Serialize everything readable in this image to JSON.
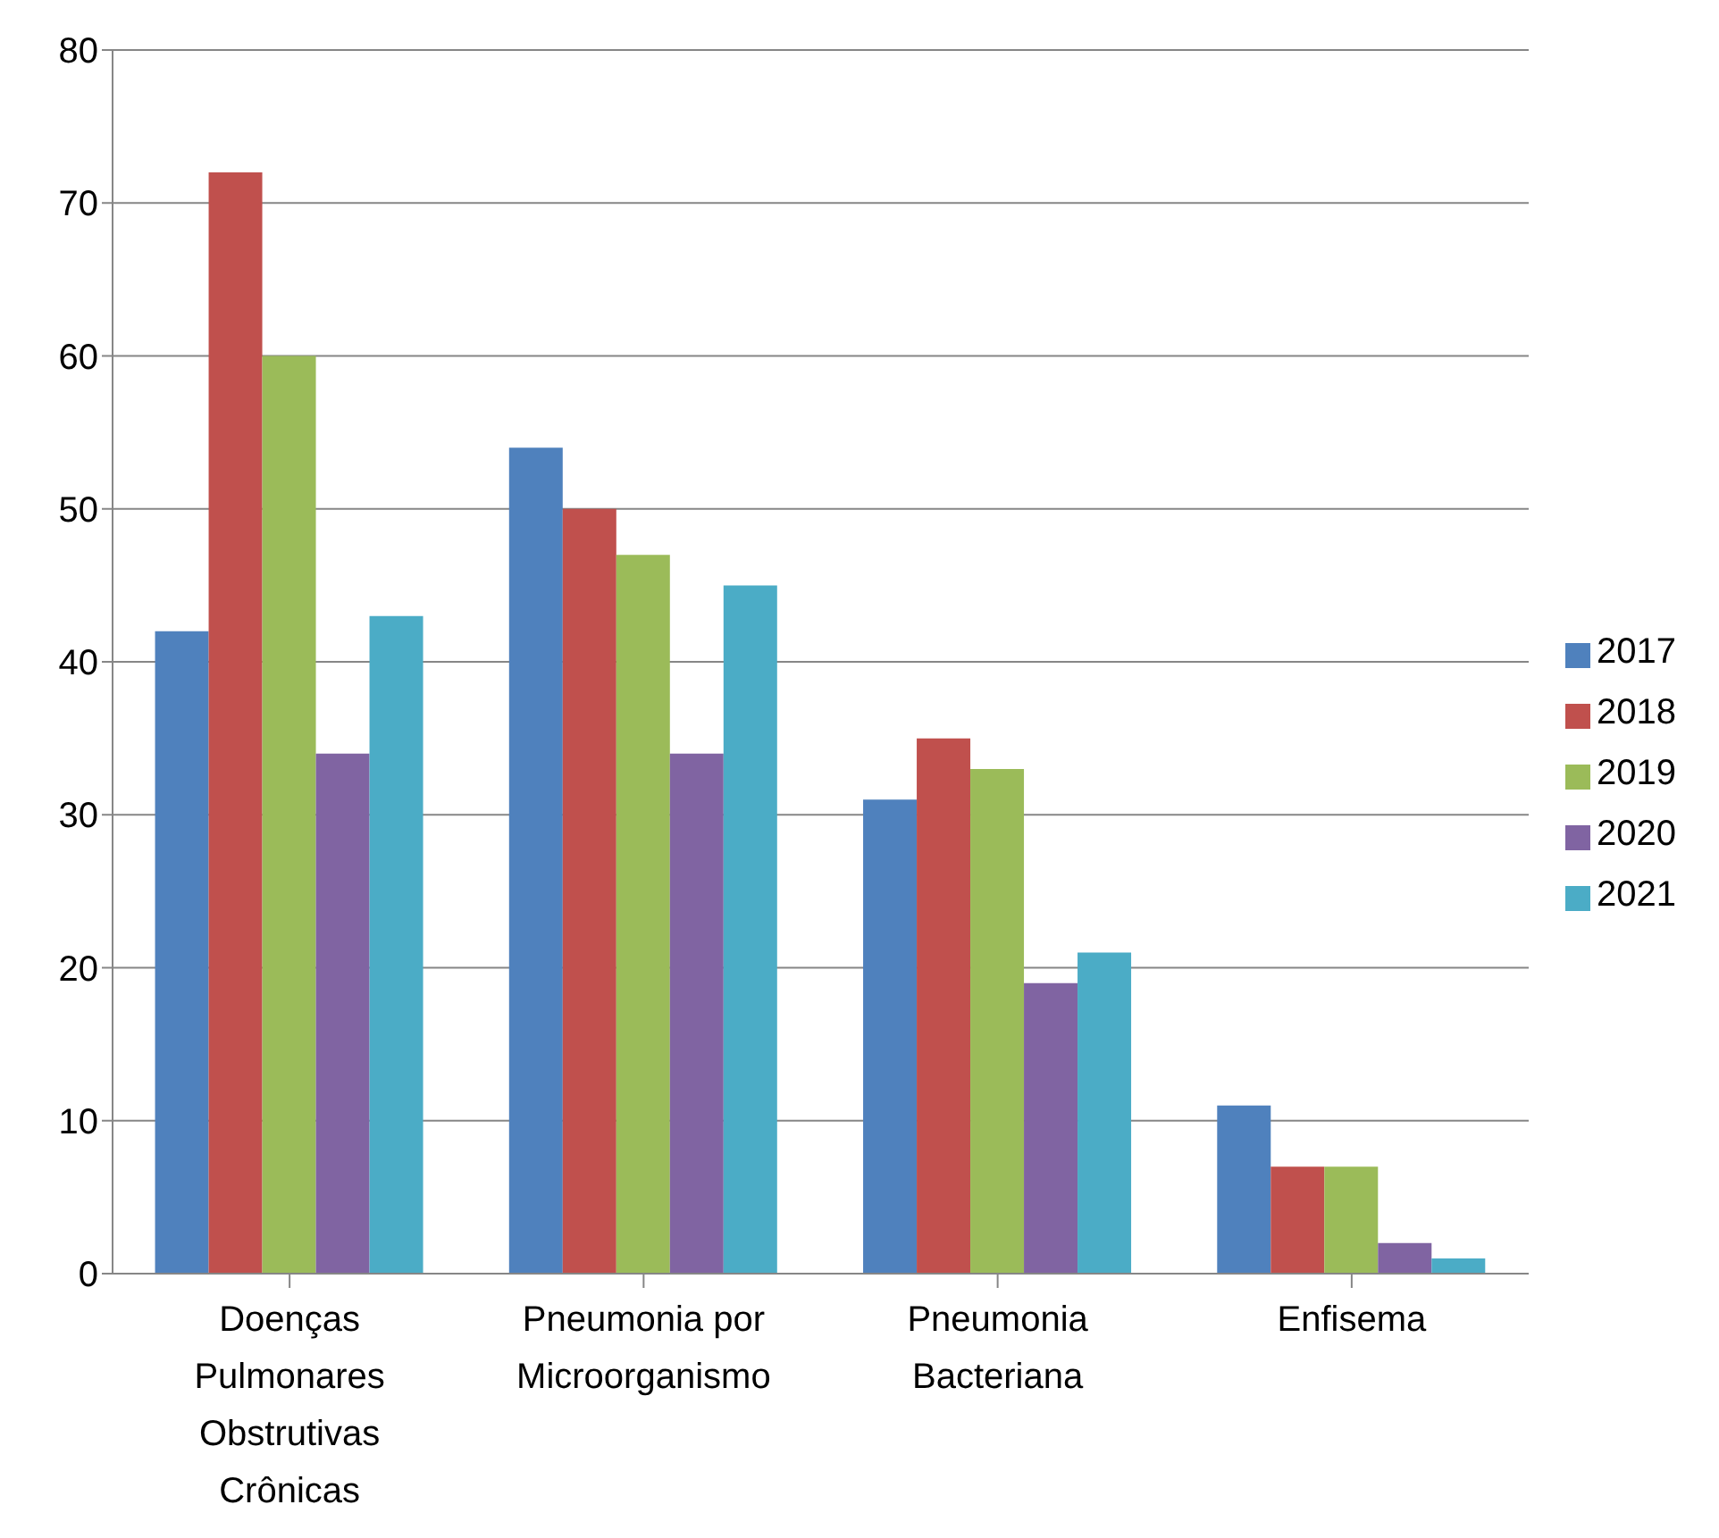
{
  "chart_data": {
    "type": "bar",
    "categories": [
      "Doenças Pulmonares Obstrutivas Crônicas",
      "Pneumonia por Microorganismo",
      "Pneumonia Bacteriana",
      "Enfisema"
    ],
    "series": [
      {
        "name": "2017",
        "color": "#4f81bd",
        "values": [
          42,
          54,
          31,
          11
        ]
      },
      {
        "name": "2018",
        "color": "#c0504d",
        "values": [
          72,
          50,
          35,
          7
        ]
      },
      {
        "name": "2019",
        "color": "#9bbb59",
        "values": [
          60,
          47,
          33,
          7
        ]
      },
      {
        "name": "2020",
        "color": "#8064a2",
        "values": [
          34,
          34,
          19,
          2
        ]
      },
      {
        "name": "2021",
        "color": "#4bacc6",
        "values": [
          43,
          45,
          21,
          1
        ]
      }
    ],
    "ylim": [
      0,
      80
    ],
    "yticks": [
      0,
      10,
      20,
      30,
      40,
      50,
      60,
      70,
      80
    ],
    "grid": "y",
    "legend": "right"
  }
}
